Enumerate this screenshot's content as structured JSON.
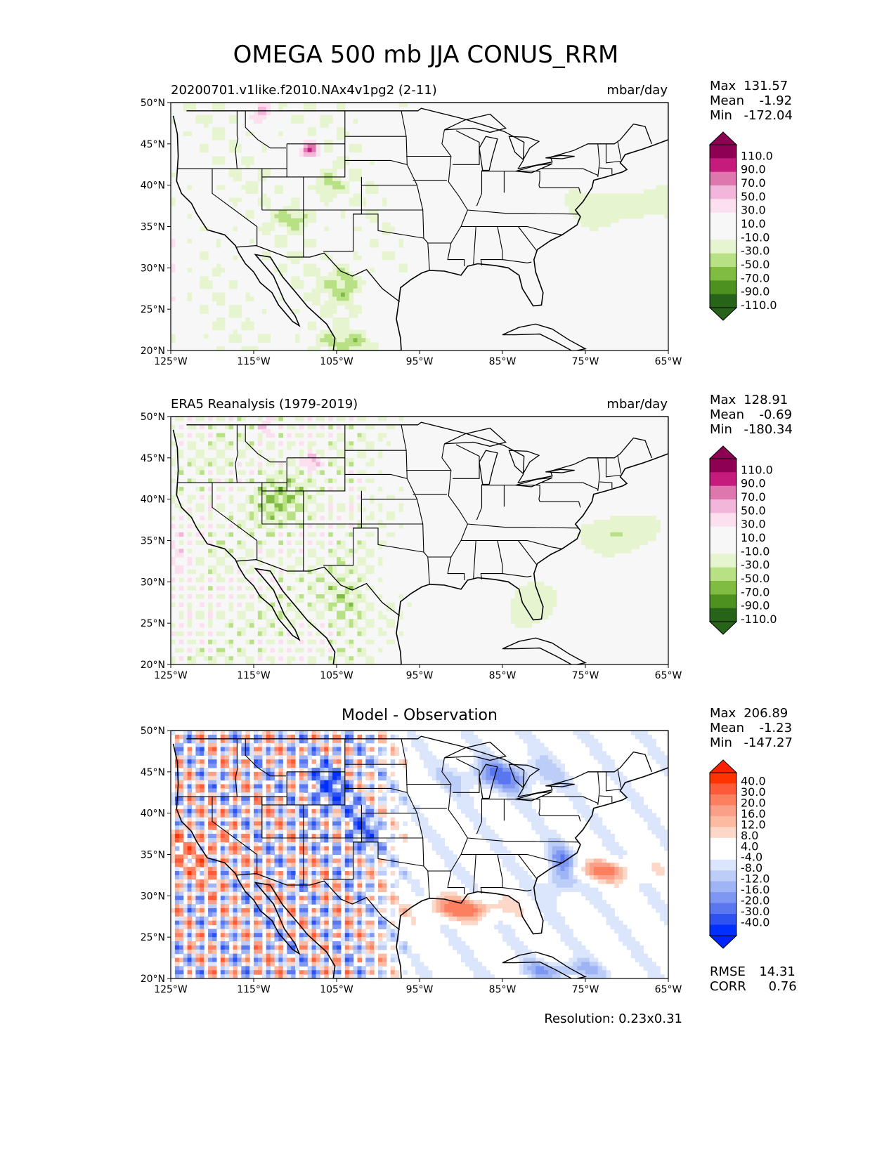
{
  "title": "OMEGA 500 mb JJA CONUS_RRM",
  "resolution": "Resolution: 0.23x0.31",
  "lat_ticks": [
    "50°N",
    "45°N",
    "40°N",
    "35°N",
    "30°N",
    "25°N",
    "20°N"
  ],
  "lon_ticks": [
    "125°W",
    "115°W",
    "105°W",
    "95°W",
    "85°W",
    "75°W",
    "65°W"
  ],
  "panels": [
    {
      "left_title": "20200701.v1like.f2010.NAx4v1pg2 (2-11)",
      "center_title": "",
      "right_title": "mbar/day",
      "stats": {
        "max_label": "Max",
        "max": "131.57",
        "mean_label": "Mean",
        "mean": "-1.92",
        "min_label": "Min",
        "min": "-172.04"
      },
      "colorbar_levels": [
        "110.0",
        "90.0",
        "70.0",
        "50.0",
        "30.0",
        "10.0",
        "-10.0",
        "-30.0",
        "-50.0",
        "-70.0",
        "-90.0",
        "-110.0"
      ],
      "colorbar_colors": [
        "#8e0152",
        "#c51b7d",
        "#de77ae",
        "#f1b6da",
        "#fde0ef",
        "#f7f7f7",
        "#f7f7f7",
        "#e6f5d0",
        "#b8e186",
        "#7fbc41",
        "#4d9221",
        "#276419"
      ],
      "colorbar_ends": [
        "#8e0152",
        "#276419"
      ]
    },
    {
      "left_title": "ERA5 Reanalysis (1979-2019)",
      "center_title": "",
      "right_title": "mbar/day",
      "stats": {
        "max_label": "Max",
        "max": "128.91",
        "mean_label": "Mean",
        "mean": "-0.69",
        "min_label": "Min",
        "min": "-180.34"
      },
      "colorbar_levels": [
        "110.0",
        "90.0",
        "70.0",
        "50.0",
        "30.0",
        "10.0",
        "-10.0",
        "-30.0",
        "-50.0",
        "-70.0",
        "-90.0",
        "-110.0"
      ],
      "colorbar_colors": [
        "#8e0152",
        "#c51b7d",
        "#de77ae",
        "#f1b6da",
        "#fde0ef",
        "#f7f7f7",
        "#f7f7f7",
        "#e6f5d0",
        "#b8e186",
        "#7fbc41",
        "#4d9221",
        "#276419"
      ],
      "colorbar_ends": [
        "#8e0152",
        "#276419"
      ]
    },
    {
      "left_title": "",
      "center_title": "Model - Observation",
      "right_title": "",
      "stats": {
        "max_label": "Max",
        "max": "206.89",
        "mean_label": "Mean",
        "mean": "-1.23",
        "min_label": "Min",
        "min": "-147.27"
      },
      "metrics": {
        "rmse_label": "RMSE",
        "rmse": "14.31",
        "corr_label": "CORR",
        "corr": "0.76"
      },
      "colorbar_levels": [
        "40.0",
        "30.0",
        "20.0",
        "16.0",
        "12.0",
        "8.0",
        "4.0",
        "-4.0",
        "-8.0",
        "-12.0",
        "-16.0",
        "-20.0",
        "-30.0",
        "-40.0"
      ],
      "colorbar_colors": [
        "#ff3300",
        "#fd5a39",
        "#fc7f5f",
        "#fba088",
        "#fcbba1",
        "#fdd7c8",
        "#ffffff",
        "#ffffff",
        "#dbe5fb",
        "#bccdf8",
        "#9fb4f5",
        "#7d97f2",
        "#5a77ef",
        "#2d52f0",
        "#0030ff"
      ],
      "colorbar_ends": [
        "#ff2200",
        "#0022ff"
      ]
    }
  ]
}
